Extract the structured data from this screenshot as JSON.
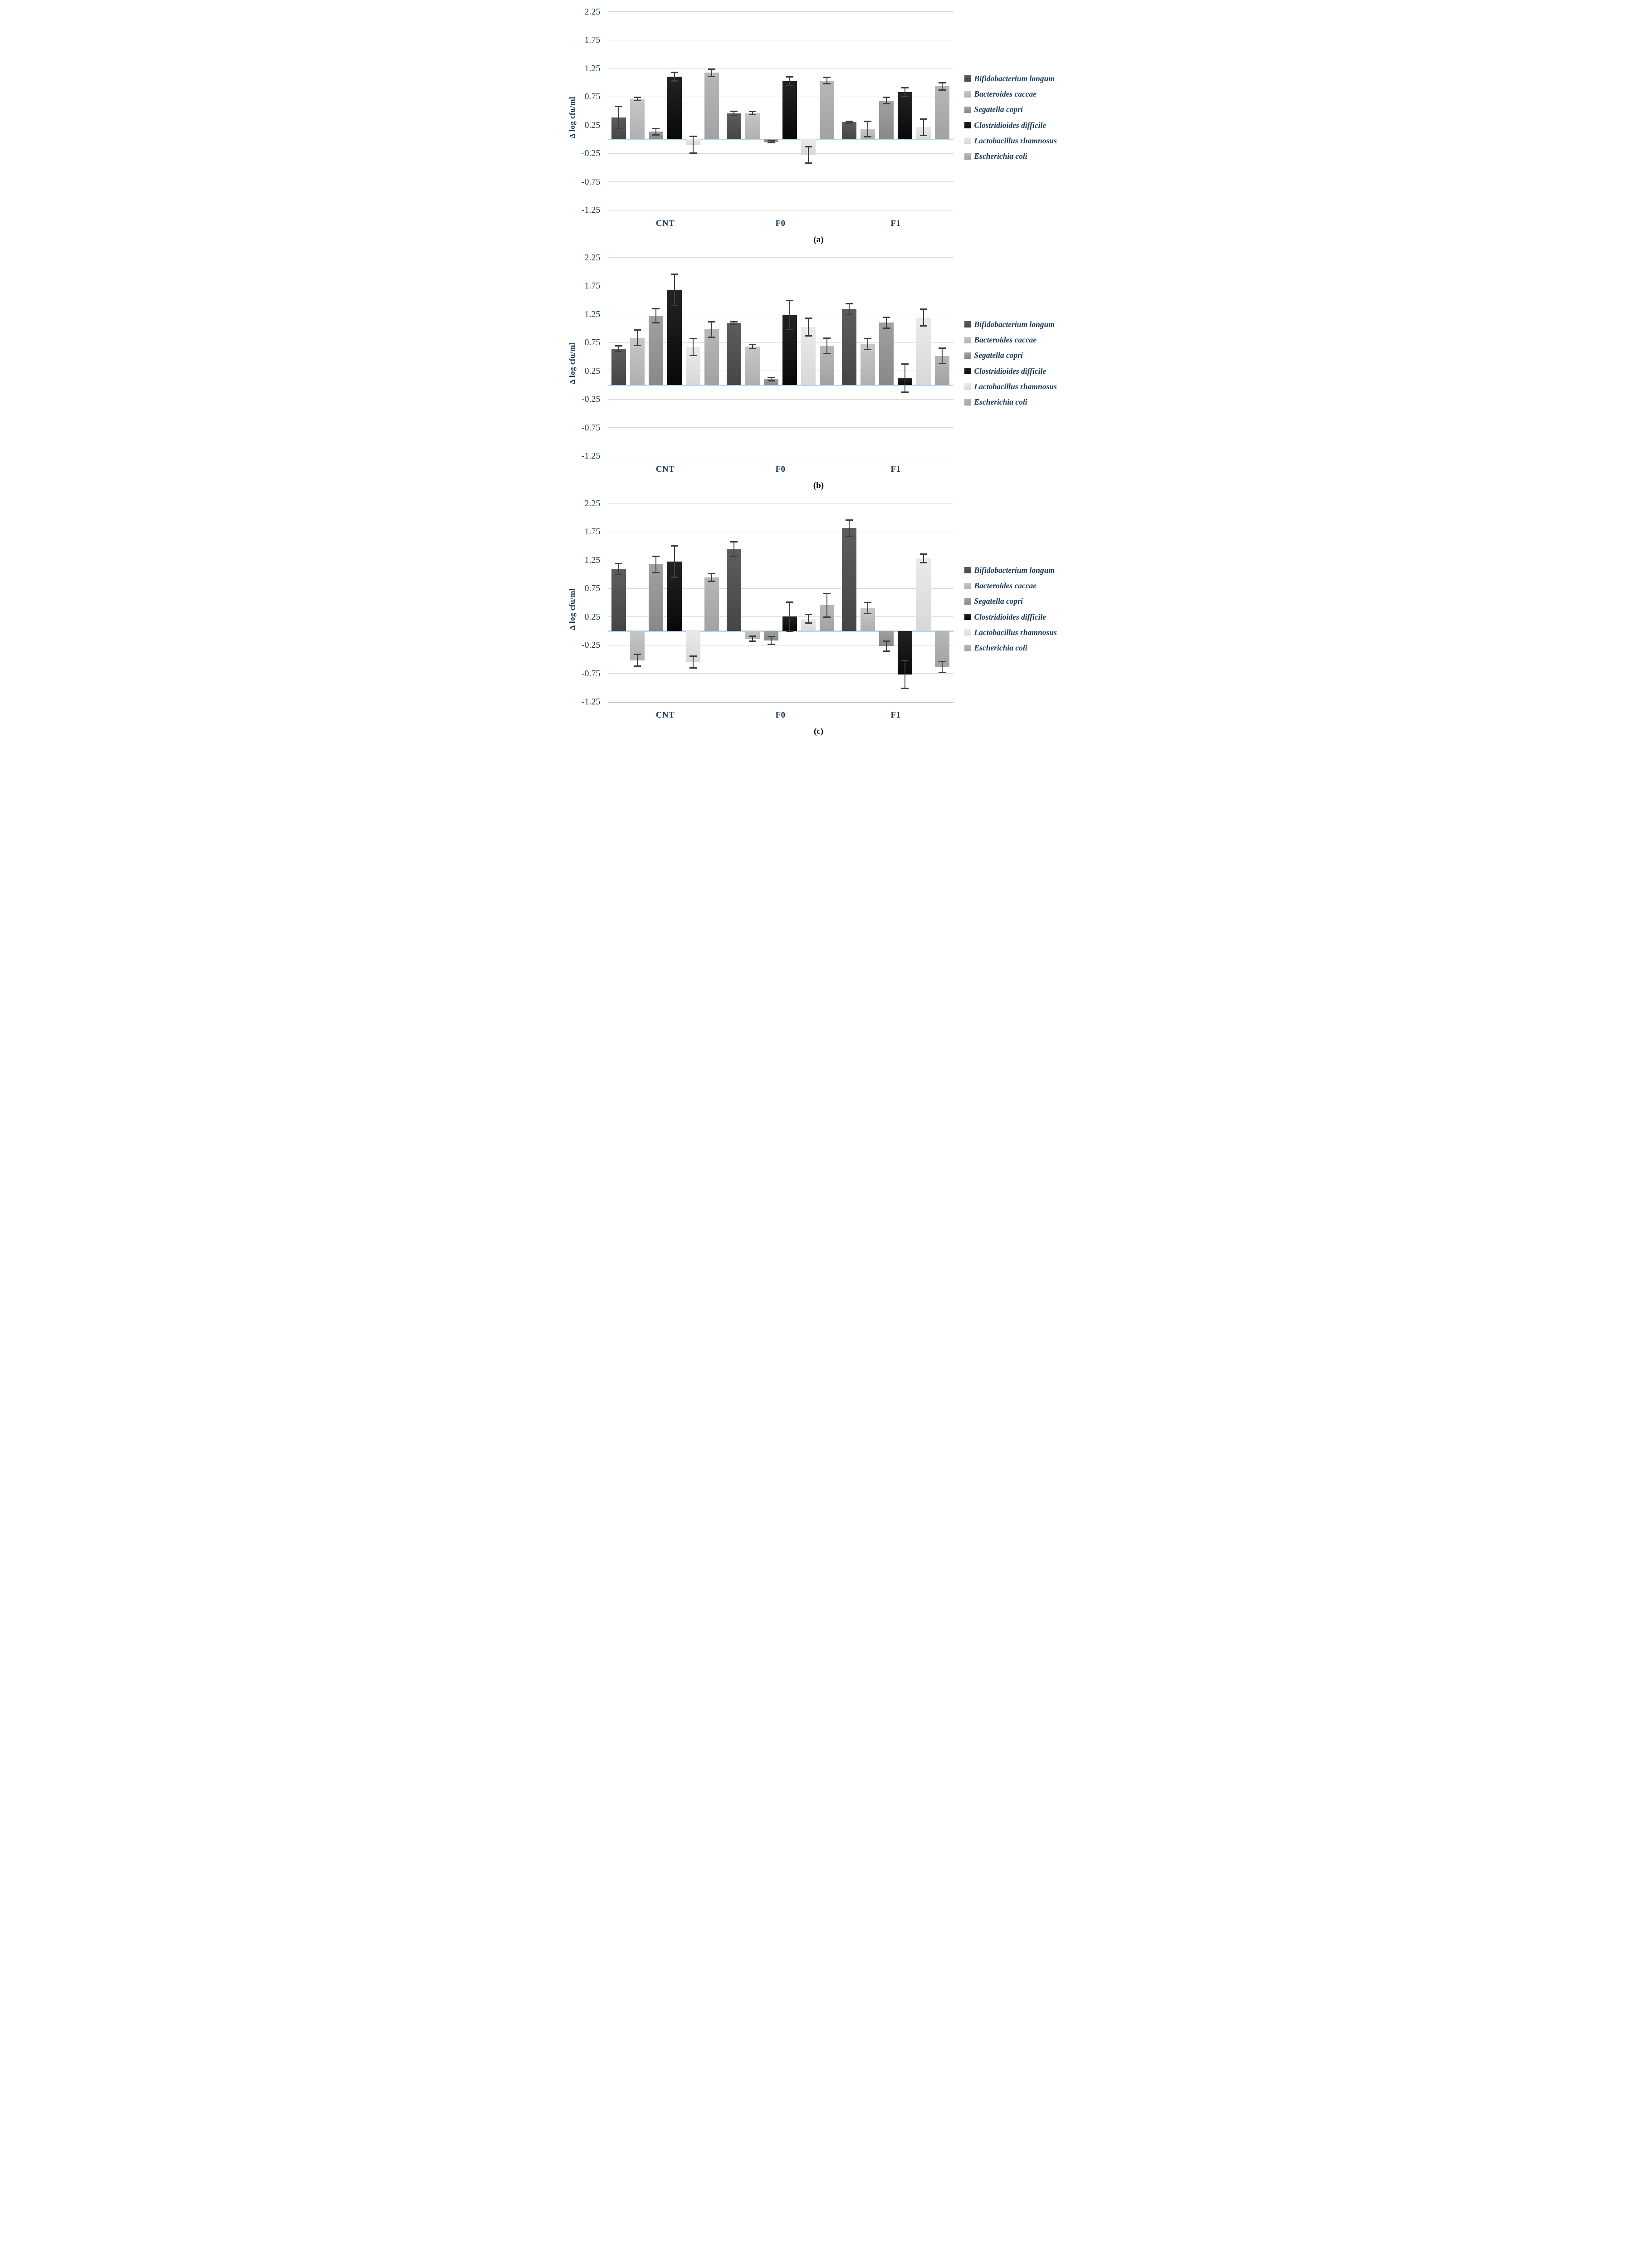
{
  "style": {
    "navy_text": "#1b3a5c",
    "grid_color": "#d8d8d8",
    "zero_line_color": "#b5d5ef",
    "error_bar_color": "#3f3f3f",
    "background": "#ffffff",
    "series_colors": {
      "bifidobacterium-longum": [
        "#5d5d5d",
        "#454545"
      ],
      "bacteroides-caccae": [
        "#c7c7c7",
        "#b0b0b0"
      ],
      "segatella-copri": [
        "#a1a1a1",
        "#888888"
      ],
      "clostridioides-difficile": [
        "#232323",
        "#080808"
      ],
      "lactobacillus-rhamnosus": [
        "#eaeaea",
        "#d8d8d8"
      ],
      "escherichia-coli": [
        "#b7b7b7",
        "#a2a2a2"
      ]
    }
  },
  "chart_data": [
    {
      "id": "a",
      "caption": "(a)",
      "type": "bar",
      "ylabel": "Δ log cfu/ml",
      "categories": [
        "CNT",
        "F0",
        "F1"
      ],
      "ylim": [
        -1.25,
        2.25
      ],
      "yticks": [
        "2.25",
        "1.75",
        "1.25",
        "0.75",
        "0.25",
        "-0.25",
        "-0.75",
        "-1.25"
      ],
      "grid": true,
      "zero_line": true,
      "legend_position": "right",
      "series": [
        {
          "name": "Bifidobacterium longum",
          "key": "bifidobacterium-longum",
          "values": [
            0.38,
            0.45,
            0.3
          ],
          "errors": [
            0.2,
            0.04,
            0.02
          ]
        },
        {
          "name": "Bacteroides caccae",
          "key": "bacteroides-caccae",
          "values": [
            0.71,
            0.46,
            0.18
          ],
          "errors": [
            0.03,
            0.03,
            0.14
          ]
        },
        {
          "name": "Segatella copri",
          "key": "segatella-copri",
          "values": [
            0.13,
            -0.05,
            0.68
          ],
          "errors": [
            0.06,
            0.02,
            0.06
          ]
        },
        {
          "name": "Clostridioides difficile",
          "key": "clostridioides-difficile",
          "values": [
            1.1,
            1.02,
            0.83
          ],
          "errors": [
            0.08,
            0.08,
            0.08
          ]
        },
        {
          "name": "Lactobacillus rhamnosus",
          "key": "lactobacillus-rhamnosus",
          "values": [
            -0.1,
            -0.28,
            0.21
          ],
          "errors": [
            0.15,
            0.15,
            0.15
          ]
        },
        {
          "name": "Escherichia coli",
          "key": "escherichia-coli",
          "values": [
            1.17,
            1.03,
            0.93
          ],
          "errors": [
            0.07,
            0.06,
            0.07
          ]
        }
      ]
    },
    {
      "id": "b",
      "caption": "(b)",
      "type": "bar",
      "ylabel": "Δ log cfu/ml",
      "categories": [
        "CNT",
        "F0",
        "F1"
      ],
      "ylim": [
        -1.25,
        2.25
      ],
      "yticks": [
        "2.25",
        "1.75",
        "1.25",
        "0.75",
        "0.25",
        "-0.25",
        "-0.75",
        "-1.25"
      ],
      "grid": true,
      "zero_line": true,
      "legend_position": "right",
      "series": [
        {
          "name": "Bifidobacterium longum",
          "key": "bifidobacterium-longum",
          "values": [
            0.64,
            1.09,
            1.34
          ],
          "errors": [
            0.05,
            0.03,
            0.1
          ]
        },
        {
          "name": "Bacteroides caccae",
          "key": "bacteroides-caccae",
          "values": [
            0.83,
            0.68,
            0.72
          ],
          "errors": [
            0.14,
            0.04,
            0.1
          ]
        },
        {
          "name": "Segatella copri",
          "key": "segatella-copri",
          "values": [
            1.22,
            0.1,
            1.1
          ],
          "errors": [
            0.13,
            0.03,
            0.1
          ]
        },
        {
          "name": "Clostridioides difficile",
          "key": "clostridioides-difficile",
          "values": [
            1.68,
            1.23,
            0.12
          ],
          "errors": [
            0.28,
            0.26,
            0.25
          ]
        },
        {
          "name": "Lactobacillus rhamnosus",
          "key": "lactobacillus-rhamnosus",
          "values": [
            0.67,
            1.02,
            1.19
          ],
          "errors": [
            0.15,
            0.16,
            0.15
          ]
        },
        {
          "name": "Escherichia coli",
          "key": "escherichia-coli",
          "values": [
            0.98,
            0.69,
            0.51
          ],
          "errors": [
            0.14,
            0.14,
            0.14
          ]
        }
      ]
    },
    {
      "id": "c",
      "caption": "(c)",
      "type": "bar",
      "ylabel": "Δ log cfu/ml",
      "categories": [
        "CNT",
        "F0",
        "F1"
      ],
      "ylim": [
        -1.25,
        2.25
      ],
      "yticks": [
        "2.25",
        "1.75",
        "1.25",
        "0.75",
        "0.25",
        "-0.25",
        "-0.75",
        "-1.25"
      ],
      "grid": true,
      "zero_line": true,
      "legend_position": "right",
      "series": [
        {
          "name": "Bifidobacterium longum",
          "key": "bifidobacterium-longum",
          "values": [
            1.09,
            1.44,
            1.81
          ],
          "errors": [
            0.1,
            0.13,
            0.15
          ]
        },
        {
          "name": "Bacteroides caccae",
          "key": "bacteroides-caccae",
          "values": [
            -0.52,
            -0.14,
            0.4
          ],
          "errors": [
            0.11,
            0.05,
            0.1
          ]
        },
        {
          "name": "Segatella copri",
          "key": "segatella-copri",
          "values": [
            1.17,
            -0.17,
            -0.27
          ],
          "errors": [
            0.15,
            0.07,
            0.09
          ]
        },
        {
          "name": "Clostridioides difficile",
          "key": "clostridioides-difficile",
          "values": [
            1.22,
            0.25,
            -0.77
          ],
          "errors": [
            0.28,
            0.26,
            0.25
          ]
        },
        {
          "name": "Lactobacillus rhamnosus",
          "key": "lactobacillus-rhamnosus",
          "values": [
            -0.55,
            0.21,
            1.28
          ],
          "errors": [
            0.11,
            0.08,
            0.08
          ]
        },
        {
          "name": "Escherichia coli",
          "key": "escherichia-coli",
          "values": [
            0.94,
            0.45,
            -0.64
          ],
          "errors": [
            0.07,
            0.21,
            0.1
          ]
        }
      ]
    }
  ]
}
